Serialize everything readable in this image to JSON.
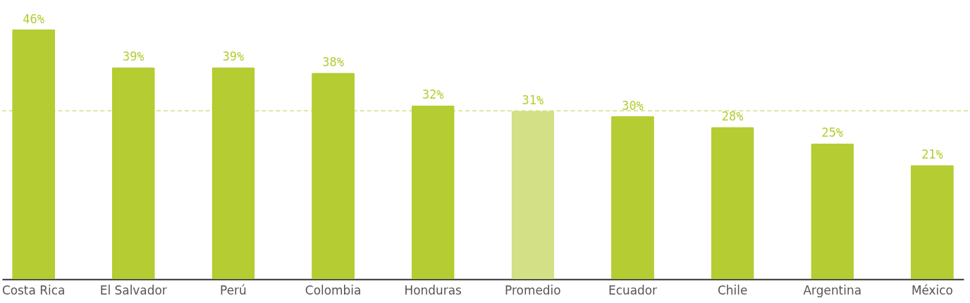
{
  "chart_data": {
    "type": "bar",
    "categories": [
      "Costa Rica",
      "El Salvador",
      "Perú",
      "Colombia",
      "Honduras",
      "Promedio",
      "Ecuador",
      "Chile",
      "Argentina",
      "México"
    ],
    "values": [
      46,
      39,
      39,
      38,
      32,
      31,
      30,
      28,
      25,
      21
    ],
    "colors": [
      "#b5cc32",
      "#b5cc32",
      "#b5cc32",
      "#b5cc32",
      "#b5cc32",
      "#d3e085",
      "#b5cc32",
      "#b5cc32",
      "#b5cc32",
      "#b5cc32"
    ],
    "value_labels": [
      "46%",
      "39%",
      "39%",
      "38%",
      "32%",
      "31%",
      "30%",
      "28%",
      "25%",
      "21%"
    ],
    "ylim": [
      0,
      51
    ],
    "ref_lines": [
      {
        "axis": "y",
        "value": 31,
        "color": "#d3e085",
        "line_style": "dashed"
      }
    ],
    "grid": false
  }
}
